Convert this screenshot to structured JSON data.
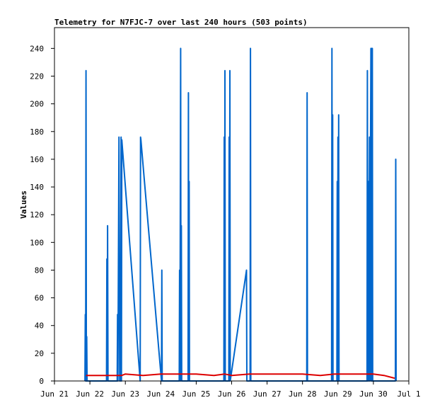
{
  "chart_data": {
    "type": "line",
    "title": "Telemetry for N7FJC-7 over last 240 hours (503 points)",
    "xlabel": "",
    "ylabel": "Values",
    "x_unit": "days",
    "xlim": [
      0,
      10
    ],
    "ylim": [
      0,
      255
    ],
    "yticks": [
      0,
      20,
      40,
      60,
      80,
      100,
      120,
      140,
      160,
      180,
      200,
      220,
      240
    ],
    "xticks": [
      {
        "x": 0,
        "label": "Jun 21"
      },
      {
        "x": 1,
        "label": "Jun 22"
      },
      {
        "x": 2,
        "label": "Jun 23"
      },
      {
        "x": 3,
        "label": "Jun 24"
      },
      {
        "x": 4,
        "label": "Jun 25"
      },
      {
        "x": 5,
        "label": "Jun 26"
      },
      {
        "x": 6,
        "label": "Jun 27"
      },
      {
        "x": 7,
        "label": "Jun 28"
      },
      {
        "x": 8,
        "label": "Jun 29"
      },
      {
        "x": 9,
        "label": "Jun 30"
      },
      {
        "x": 10,
        "label": "Jul 1"
      }
    ],
    "grid": false,
    "legend": "none",
    "series": [
      {
        "color": "#0066cc",
        "points": [
          [
            0.86,
            0
          ],
          [
            0.87,
            48
          ],
          [
            0.88,
            0
          ],
          [
            0.89,
            224
          ],
          [
            0.9,
            0
          ],
          [
            0.91,
            32
          ],
          [
            0.92,
            0
          ],
          [
            1.47,
            0
          ],
          [
            1.48,
            88
          ],
          [
            1.49,
            0
          ],
          [
            1.5,
            112
          ],
          [
            1.51,
            0
          ],
          [
            1.77,
            0
          ],
          [
            1.78,
            48
          ],
          [
            1.79,
            0
          ],
          [
            1.82,
            176
          ],
          [
            1.84,
            0
          ],
          [
            1.85,
            56
          ],
          [
            1.86,
            0
          ],
          [
            1.88,
            176
          ],
          [
            1.89,
            0
          ],
          [
            1.9,
            174
          ],
          [
            2.42,
            0
          ],
          [
            2.43,
            176
          ],
          [
            2.44,
            174
          ],
          [
            3.02,
            0
          ],
          [
            3.03,
            80
          ],
          [
            3.04,
            0
          ],
          [
            3.52,
            0
          ],
          [
            3.53,
            80
          ],
          [
            3.54,
            0
          ],
          [
            3.56,
            240
          ],
          [
            3.57,
            0
          ],
          [
            3.58,
            112
          ],
          [
            3.59,
            0
          ],
          [
            3.77,
            0
          ],
          [
            3.78,
            208
          ],
          [
            3.79,
            0
          ],
          [
            3.8,
            144
          ],
          [
            3.81,
            0
          ],
          [
            4.78,
            0
          ],
          [
            4.79,
            176
          ],
          [
            4.8,
            0
          ],
          [
            4.81,
            224
          ],
          [
            4.82,
            0
          ],
          [
            4.92,
            0
          ],
          [
            4.93,
            176
          ],
          [
            4.94,
            0
          ],
          [
            4.95,
            224
          ],
          [
            4.96,
            0
          ],
          [
            5.42,
            80
          ],
          [
            5.43,
            0
          ],
          [
            5.52,
            0
          ],
          [
            5.53,
            240
          ],
          [
            5.54,
            0
          ],
          [
            7.12,
            0
          ],
          [
            7.13,
            208
          ],
          [
            7.14,
            0
          ],
          [
            7.82,
            0
          ],
          [
            7.83,
            240
          ],
          [
            7.84,
            0
          ],
          [
            7.85,
            192
          ],
          [
            7.86,
            0
          ],
          [
            7.97,
            0
          ],
          [
            7.98,
            144
          ],
          [
            7.99,
            0
          ],
          [
            8.0,
            176
          ],
          [
            8.01,
            0
          ],
          [
            8.02,
            192
          ],
          [
            8.03,
            0
          ],
          [
            8.82,
            0
          ],
          [
            8.83,
            224
          ],
          [
            8.84,
            0
          ],
          [
            8.86,
            144
          ],
          [
            8.87,
            0
          ],
          [
            8.89,
            176
          ],
          [
            8.9,
            0
          ],
          [
            8.92,
            176
          ],
          [
            8.93,
            240
          ],
          [
            8.94,
            0
          ],
          [
            8.95,
            240
          ],
          [
            8.96,
            0
          ],
          [
            8.97,
            240
          ],
          [
            8.98,
            0
          ],
          [
            9.62,
            0
          ],
          [
            9.63,
            160
          ],
          [
            9.64,
            0
          ]
        ]
      },
      {
        "color": "#dd0000",
        "points": [
          [
            0.89,
            4
          ],
          [
            1.0,
            4
          ],
          [
            1.5,
            4
          ],
          [
            1.9,
            4
          ],
          [
            2.0,
            5
          ],
          [
            2.5,
            4
          ],
          [
            3.0,
            5
          ],
          [
            3.5,
            5
          ],
          [
            3.8,
            5
          ],
          [
            4.0,
            5
          ],
          [
            4.5,
            4
          ],
          [
            4.8,
            5
          ],
          [
            5.0,
            4
          ],
          [
            5.5,
            5
          ],
          [
            6.0,
            5
          ],
          [
            6.5,
            5
          ],
          [
            7.0,
            5
          ],
          [
            7.5,
            4
          ],
          [
            7.9,
            5
          ],
          [
            8.0,
            5
          ],
          [
            8.5,
            5
          ],
          [
            8.9,
            5
          ],
          [
            9.0,
            5
          ],
          [
            9.3,
            4
          ],
          [
            9.6,
            2
          ]
        ]
      }
    ]
  }
}
